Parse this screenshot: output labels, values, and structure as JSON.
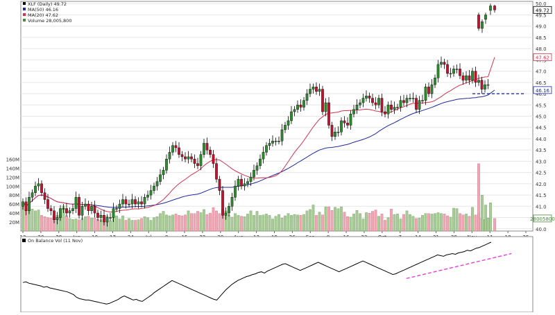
{
  "chart_data": {
    "type": "candlestick",
    "symbol": "XLF",
    "legend": [
      {
        "name": "XLF (Daily) 49.72",
        "color": "#000000"
      },
      {
        "name": "MA(50) 46.16",
        "color": "#1f2a9c"
      },
      {
        "name": "MA(20) 47.62",
        "color": "#d6314c"
      },
      {
        "name": "Volume 28,005,800",
        "color": "#4a8a3a"
      }
    ],
    "price_axis": {
      "ticks": [
        "40.0",
        "40.5",
        "41.0",
        "41.5",
        "42.0",
        "42.5",
        "43.0",
        "43.5",
        "44.0",
        "44.5",
        "45.0",
        "45.5",
        "46.0",
        "46.5",
        "47.0",
        "47.5",
        "48.0",
        "48.5",
        "49.0",
        "49.5",
        "50.0"
      ],
      "range": [
        39.9,
        50.1
      ]
    },
    "volume_axis": {
      "ticks": [
        "20M",
        "40M",
        "60M",
        "80M",
        "100M",
        "120M",
        "140M",
        "160M"
      ],
      "range": [
        0,
        170
      ]
    },
    "price_badges": [
      {
        "label": "49.72",
        "value": 49.72,
        "color": "#000000"
      },
      {
        "label": "47.62",
        "value": 47.62,
        "color": "#d6314c"
      },
      {
        "label": "46.16",
        "value": 46.16,
        "color": "#1f2a9c"
      },
      {
        "label": "28005800",
        "value": 28.0,
        "color": "#4a8a3a"
      }
    ],
    "date_labels": [
      "13",
      "20",
      "28",
      "Jun",
      "10",
      "17",
      "24",
      "Jul",
      "8",
      "15",
      "22",
      "29",
      "Aug",
      "12",
      "19",
      "26",
      "Sep",
      "9",
      "16",
      "23",
      "Oct",
      "7",
      "14",
      "21",
      "28",
      "Nov",
      "11",
      "18",
      "25"
    ],
    "support_level": 46.0,
    "days": 150,
    "close": [
      41.2,
      40.8,
      41.4,
      41.6,
      41.9,
      42.0,
      41.6,
      41.3,
      40.9,
      40.8,
      40.4,
      40.5,
      40.9,
      40.9,
      40.7,
      40.8,
      40.9,
      41.4,
      40.6,
      41.0,
      41.1,
      40.8,
      41.0,
      40.7,
      40.5,
      40.6,
      40.3,
      40.5,
      40.5,
      40.9,
      40.9,
      41.1,
      41.3,
      41.1,
      41.1,
      41.3,
      41.1,
      41.2,
      41.1,
      41.4,
      41.5,
      41.7,
      41.9,
      42.1,
      42.4,
      42.6,
      43.1,
      43.4,
      43.7,
      43.6,
      43.3,
      43.2,
      43.1,
      43.2,
      43.1,
      42.9,
      42.8,
      43.3,
      43.8,
      43.5,
      43.3,
      42.9,
      42.2,
      41.7,
      40.6,
      40.7,
      41.0,
      41.4,
      41.9,
      42.2,
      41.9,
      42.0,
      42.1,
      42.3,
      42.6,
      42.8,
      43.1,
      43.4,
      43.7,
      43.8,
      43.9,
      43.9,
      43.9,
      44.4,
      44.6,
      44.8,
      45.2,
      45.3,
      45.5,
      45.4,
      45.7,
      46.0,
      46.2,
      46.3,
      46.1,
      46.2,
      45.2,
      45.6,
      44.6,
      44.1,
      44.3,
      44.3,
      44.8,
      44.7,
      44.6,
      45.1,
      45.3,
      45.5,
      45.6,
      45.8,
      45.9,
      45.8,
      45.6,
      45.5,
      45.8,
      45.2,
      45.1,
      45.5,
      45.3,
      45.4,
      45.4,
      45.7,
      45.6,
      45.8,
      45.8,
      45.8,
      45.3,
      45.7,
      45.7,
      46.3,
      46.0,
      46.4,
      46.7,
      47.3,
      47.4,
      47.3,
      46.9,
      46.9,
      47.1,
      47.1,
      46.8,
      46.6,
      46.8,
      46.6,
      47.0,
      46.5,
      46.6,
      46.2,
      46.4,
      46.4
    ],
    "volume": [
      56,
      48,
      53,
      49,
      45,
      47,
      35,
      32,
      30,
      29,
      34,
      35,
      36,
      56,
      34,
      28,
      26,
      27,
      25,
      28,
      32,
      33,
      29,
      29,
      26,
      25,
      19,
      33,
      23,
      33,
      34,
      27,
      34,
      24,
      28,
      24,
      24,
      25,
      28,
      32,
      30,
      24,
      30,
      32,
      39,
      44,
      36,
      34,
      36,
      38,
      35,
      34,
      36,
      45,
      39,
      39,
      44,
      41,
      48,
      37,
      40,
      52,
      45,
      39,
      49,
      45,
      36,
      31,
      39,
      35,
      33,
      32,
      38,
      45,
      35,
      44,
      35,
      36,
      38,
      35,
      27,
      33,
      37,
      29,
      34,
      39,
      35,
      37,
      36,
      35,
      37,
      45,
      48,
      58,
      35,
      42,
      36,
      54,
      54,
      46,
      53,
      50,
      54,
      42,
      32,
      31,
      38,
      46,
      39,
      27,
      41,
      40,
      44,
      47,
      33,
      38,
      24,
      30,
      49,
      37,
      38,
      27,
      37,
      45,
      37,
      33,
      28,
      29,
      35,
      39,
      39,
      38,
      39,
      41,
      39,
      38,
      34,
      31,
      51,
      50,
      39,
      36,
      38,
      33,
      53,
      36,
      41,
      29,
      26,
      29
    ],
    "gap_candles": [
      {
        "open": 49.5,
        "high": 49.6,
        "low": 48.8,
        "close": 48.9
      },
      {
        "open": 48.9,
        "high": 49.3,
        "low": 48.7,
        "close": 49.2
      },
      {
        "open": 49.3,
        "high": 49.6,
        "low": 49.1,
        "close": 49.5
      },
      {
        "open": 49.7,
        "high": 50.0,
        "low": 49.5,
        "close": 49.9
      },
      {
        "open": 49.9,
        "high": 49.95,
        "low": 49.6,
        "close": 49.72
      }
    ],
    "gap_volume": [
      150,
      80,
      58,
      63,
      28
    ],
    "obv": {
      "label": "On Balance Vol (11 Nov)",
      "values": [
        40,
        41,
        39,
        38,
        37,
        36,
        35,
        33,
        34,
        32,
        31,
        30,
        29,
        28,
        27,
        26,
        24,
        22,
        18,
        16,
        15,
        14,
        14,
        13,
        12,
        11,
        10,
        9,
        8,
        9,
        11,
        13,
        15,
        18,
        20,
        18,
        16,
        14,
        15,
        13,
        12,
        15,
        18,
        21,
        25,
        28,
        31,
        34,
        37,
        40,
        43,
        41,
        39,
        37,
        35,
        33,
        31,
        29,
        27,
        25,
        23,
        21,
        19,
        17,
        15,
        14,
        19,
        24,
        29,
        33,
        37,
        40,
        43,
        45,
        47,
        49,
        50,
        52,
        53,
        55,
        56,
        54,
        57,
        59,
        61,
        63,
        65,
        67,
        68,
        66,
        64,
        62,
        60,
        58,
        60,
        62,
        64,
        66,
        68,
        70,
        68,
        66,
        64,
        62,
        60,
        58,
        56,
        58,
        60,
        62,
        64,
        66,
        68,
        70,
        72,
        70,
        68,
        66,
        64,
        62,
        60,
        58,
        56,
        54,
        52,
        53,
        55,
        57,
        59,
        61,
        63,
        65,
        67,
        69,
        71,
        73,
        75,
        77,
        79,
        81,
        80,
        79,
        81,
        82,
        83,
        82,
        84,
        85,
        86,
        88,
        87,
        89,
        91,
        92,
        94,
        96,
        98,
        100
      ]
    },
    "obv_trendline": {
      "x": [
        0.753,
        0.958
      ],
      "y": [
        46,
        83
      ]
    }
  }
}
